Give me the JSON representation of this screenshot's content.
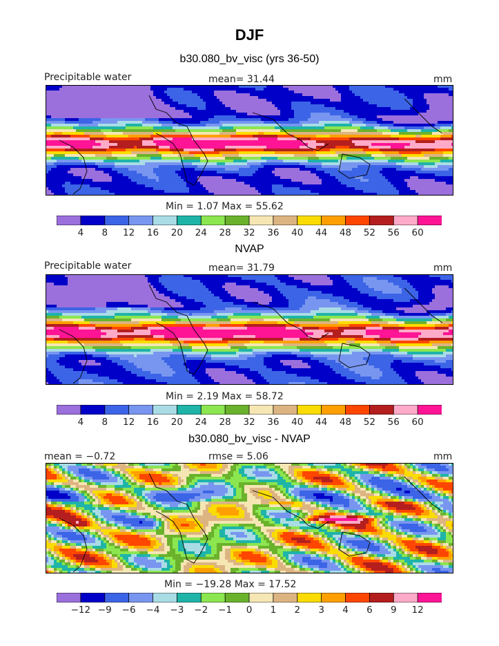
{
  "page": {
    "title": "DJF"
  },
  "chart_data": [
    {
      "type": "heatmap",
      "title": "b30.080_bv_visc (yrs 36-50)",
      "left_label": "Precipitable water",
      "center_label": "mean=   31.44",
      "units": "mm",
      "stats": "Min =     1.07  Max =   55.62",
      "legend_levels": [
        "4",
        "8",
        "12",
        "16",
        "20",
        "24",
        "28",
        "32",
        "36",
        "40",
        "44",
        "48",
        "52",
        "56",
        "60"
      ],
      "colors": [
        "#9b6fdc",
        "#0000c8",
        "#3c64e6",
        "#7896f0",
        "#aadce6",
        "#1eb4a8",
        "#8ce650",
        "#6ab22c",
        "#f5e6b4",
        "#dcb482",
        "#fadc00",
        "#ffa000",
        "#ff4600",
        "#b41e1e",
        "#ffaac8",
        "#ff1496"
      ],
      "min": 1.07,
      "max": 55.62,
      "mean": 31.44
    },
    {
      "type": "heatmap",
      "title": "NVAP",
      "left_label": "Precipitable water",
      "center_label": "mean=   31.79",
      "units": "mm",
      "stats": "Min =     2.19  Max =   58.72",
      "legend_levels": [
        "4",
        "8",
        "12",
        "16",
        "20",
        "24",
        "28",
        "32",
        "36",
        "40",
        "44",
        "48",
        "52",
        "56",
        "60"
      ],
      "colors": [
        "#9b6fdc",
        "#0000c8",
        "#3c64e6",
        "#7896f0",
        "#aadce6",
        "#1eb4a8",
        "#8ce650",
        "#6ab22c",
        "#f5e6b4",
        "#dcb482",
        "#fadc00",
        "#ffa000",
        "#ff4600",
        "#b41e1e",
        "#ffaac8",
        "#ff1496"
      ],
      "min": 2.19,
      "max": 58.72,
      "mean": 31.79
    },
    {
      "type": "heatmap",
      "title": "b30.080_bv_visc - NVAP",
      "left_label": "mean =   −0.72",
      "center_label": "rmse =    5.06",
      "units": "mm",
      "stats": "Min = −19.28  Max =   17.52",
      "legend_levels": [
        "−12",
        "−9",
        "−6",
        "−4",
        "−3",
        "−2",
        "−1",
        "0",
        "1",
        "2",
        "3",
        "4",
        "6",
        "9",
        "12"
      ],
      "colors": [
        "#9b6fdc",
        "#0000c8",
        "#3c64e6",
        "#7896f0",
        "#aadce6",
        "#1eb4a8",
        "#8ce650",
        "#6ab22c",
        "#f5e6b4",
        "#dcb482",
        "#fadc00",
        "#ffa000",
        "#ff4600",
        "#b41e1e",
        "#ffaac8",
        "#ff1496"
      ],
      "min": -19.28,
      "max": 17.52,
      "mean": -0.72,
      "rmse": 5.06
    }
  ]
}
